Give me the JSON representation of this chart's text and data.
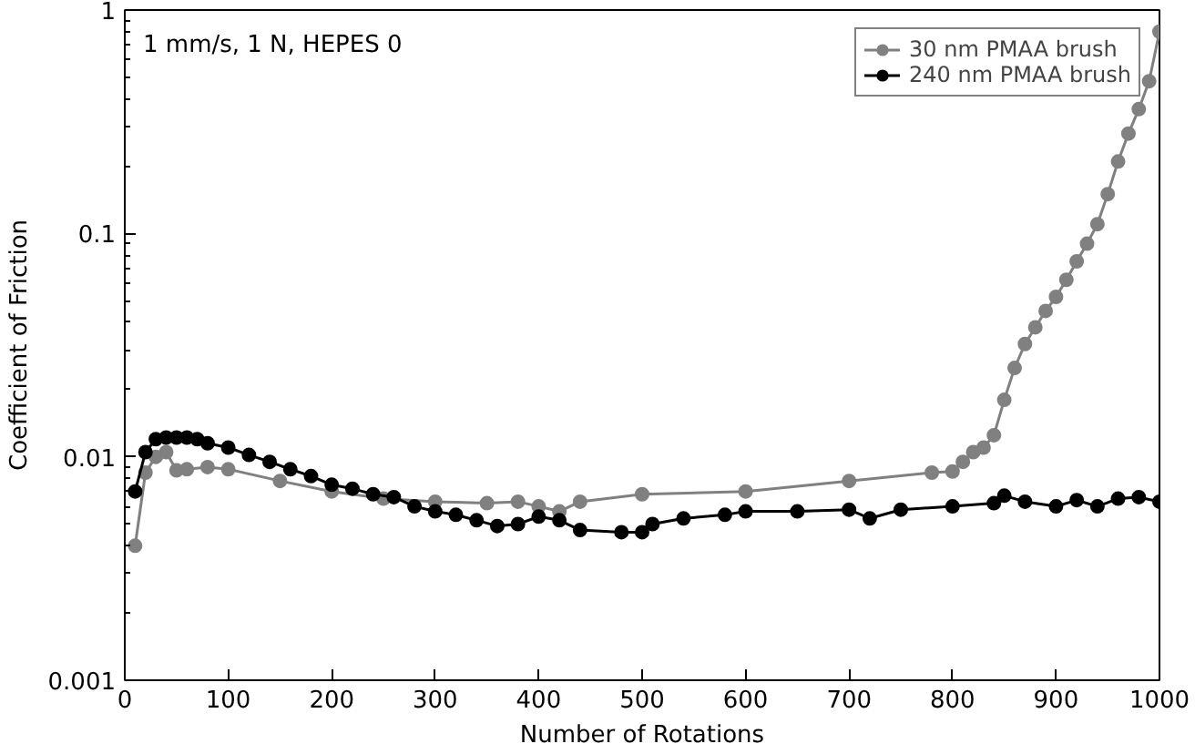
{
  "chart_data": {
    "type": "line",
    "xlabel": "Number of Rotations",
    "ylabel": "Coefficient of Friction",
    "annotations": [
      "1 mm/s, 1 N, HEPES 0"
    ],
    "xlim": [
      0,
      1000
    ],
    "xticks": [
      0,
      100,
      200,
      300,
      400,
      500,
      600,
      700,
      800,
      900,
      1000
    ],
    "ylim": [
      0.001,
      1
    ],
    "yticks": [
      0.001,
      0.01,
      0.1,
      1
    ],
    "log": "y",
    "grid": false,
    "legend": "top right",
    "marker": "circle",
    "line_style": "solid",
    "series": [
      {
        "name": "30 nm PMAA brush",
        "color": "#808080",
        "x": [
          10,
          20,
          30,
          40,
          50,
          60,
          80,
          100,
          150,
          200,
          250,
          300,
          350,
          380,
          400,
          420,
          440,
          500,
          600,
          700,
          780,
          800,
          810,
          820,
          830,
          840,
          850,
          860,
          870,
          880,
          890,
          900,
          910,
          920,
          930,
          940,
          950,
          960,
          970,
          980,
          990,
          1000
        ],
        "values": [
          0.004,
          0.0085,
          0.01,
          0.0105,
          0.0087,
          0.0088,
          0.009,
          0.0088,
          0.0078,
          0.007,
          0.0065,
          0.0063,
          0.0062,
          0.0063,
          0.006,
          0.0057,
          0.0063,
          0.0068,
          0.007,
          0.0078,
          0.0085,
          0.0086,
          0.0095,
          0.0105,
          0.011,
          0.0125,
          0.018,
          0.025,
          0.032,
          0.038,
          0.045,
          0.052,
          0.062,
          0.075,
          0.09,
          0.11,
          0.15,
          0.21,
          0.28,
          0.36,
          0.48,
          0.8
        ]
      },
      {
        "name": "240 nm PMAA brush",
        "color": "#000000",
        "x": [
          10,
          20,
          30,
          40,
          50,
          60,
          70,
          80,
          100,
          120,
          140,
          160,
          180,
          200,
          220,
          240,
          260,
          280,
          300,
          320,
          340,
          360,
          380,
          400,
          420,
          440,
          480,
          500,
          510,
          540,
          580,
          600,
          650,
          700,
          720,
          750,
          800,
          840,
          850,
          870,
          900,
          920,
          940,
          960,
          980,
          1000
        ],
        "values": [
          0.007,
          0.0105,
          0.012,
          0.0122,
          0.0122,
          0.0122,
          0.012,
          0.0115,
          0.011,
          0.0102,
          0.0095,
          0.0088,
          0.0082,
          0.0075,
          0.0072,
          0.0068,
          0.0066,
          0.006,
          0.0057,
          0.0055,
          0.0052,
          0.0049,
          0.005,
          0.0054,
          0.0052,
          0.0047,
          0.0046,
          0.0046,
          0.005,
          0.0053,
          0.0055,
          0.0057,
          0.0057,
          0.0058,
          0.0053,
          0.0058,
          0.006,
          0.0062,
          0.0067,
          0.0063,
          0.006,
          0.0064,
          0.006,
          0.0065,
          0.0066,
          0.0063
        ]
      }
    ]
  }
}
